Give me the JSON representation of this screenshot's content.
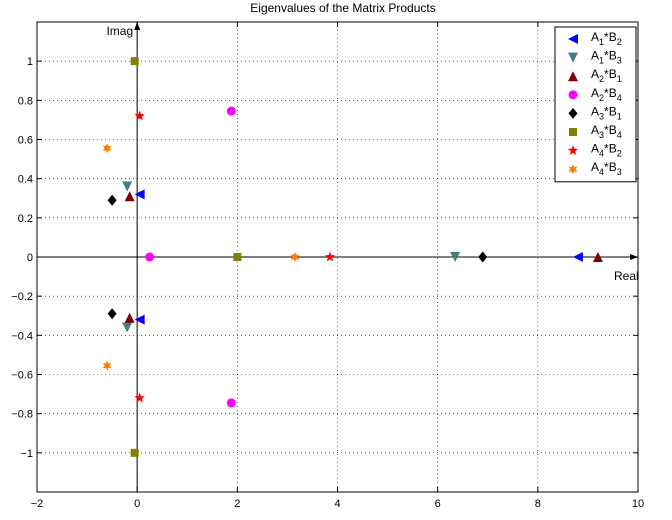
{
  "chart_data": {
    "type": "scatter",
    "title": "Eigenvalues of the Matrix Products",
    "xlabel": "Real",
    "ylabel": "Imag",
    "xlim": [
      -2,
      10
    ],
    "ylim": [
      -1.2,
      1.2
    ],
    "xticks": [
      -2,
      0,
      2,
      4,
      6,
      8,
      10
    ],
    "yticks": [
      -1,
      -0.8,
      -0.6,
      -0.4,
      -0.2,
      0,
      0.2,
      0.4,
      0.6,
      0.8,
      1
    ],
    "xtick_labels": [
      "−2",
      "0",
      "2",
      "4",
      "6",
      "8",
      "10"
    ],
    "ytick_labels": [
      "−1",
      "−0.8",
      "−0.6",
      "−0.4",
      "−0.2",
      "0",
      "0.2",
      "0.4",
      "0.6",
      "0.8",
      "1"
    ],
    "grid": true,
    "legend_position": "top-right",
    "series": [
      {
        "name": "A1*B2",
        "label_parts": [
          "A",
          "1",
          "*B",
          "2"
        ],
        "marker": "triangle-left",
        "color": "#0000ff",
        "points": [
          [
            8.8,
            0
          ],
          [
            0.05,
            0.32
          ],
          [
            0.05,
            -0.32
          ]
        ]
      },
      {
        "name": "A1*B3",
        "label_parts": [
          "A",
          "1",
          "*B",
          "3"
        ],
        "marker": "triangle-down",
        "color": "#408080",
        "points": [
          [
            6.35,
            0
          ],
          [
            -0.2,
            0.36
          ],
          [
            -0.2,
            -0.36
          ]
        ]
      },
      {
        "name": "A2*B1",
        "label_parts": [
          "A",
          "2",
          "*B",
          "1"
        ],
        "marker": "triangle-up",
        "color": "#800000",
        "points": [
          [
            9.2,
            0
          ],
          [
            -0.15,
            0.31
          ],
          [
            -0.15,
            -0.31
          ]
        ]
      },
      {
        "name": "A2*B4",
        "label_parts": [
          "A",
          "2",
          "*B",
          "4"
        ],
        "marker": "circle",
        "color": "#ff00ff",
        "points": [
          [
            1.88,
            0.745
          ],
          [
            1.88,
            -0.745
          ],
          [
            0.25,
            0
          ]
        ]
      },
      {
        "name": "A3*B1",
        "label_parts": [
          "A",
          "3",
          "*B",
          "1"
        ],
        "marker": "diamond",
        "color": "#000000",
        "points": [
          [
            6.9,
            0
          ],
          [
            -0.5,
            0.29
          ],
          [
            -0.5,
            -0.29
          ]
        ]
      },
      {
        "name": "A3*B4",
        "label_parts": [
          "A",
          "3",
          "*B",
          "4"
        ],
        "marker": "square",
        "color": "#808000",
        "points": [
          [
            -0.05,
            1.0
          ],
          [
            -0.05,
            -1.0
          ],
          [
            2.0,
            0
          ]
        ]
      },
      {
        "name": "A4*B2",
        "label_parts": [
          "A",
          "4",
          "*B",
          "2"
        ],
        "marker": "pentagram",
        "color": "#ff0000",
        "points": [
          [
            0.05,
            0.72
          ],
          [
            0.05,
            -0.72
          ],
          [
            3.85,
            0
          ]
        ]
      },
      {
        "name": "A4*B3",
        "label_parts": [
          "A",
          "4",
          "*B",
          "3"
        ],
        "marker": "hexagram",
        "color": "#ff8000",
        "points": [
          [
            -0.6,
            0.555
          ],
          [
            -0.6,
            -0.555
          ],
          [
            3.15,
            0
          ]
        ]
      }
    ]
  }
}
